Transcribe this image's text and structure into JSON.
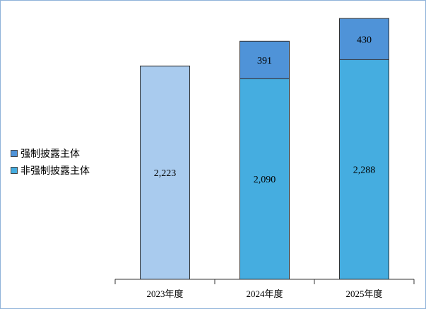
{
  "chart_data": {
    "type": "bar",
    "stacked": true,
    "categories": [
      "2023年度",
      "2024年度",
      "2025年度"
    ],
    "series": [
      {
        "name": "非强制披露主体",
        "values": [
          2223,
          2090,
          2288
        ],
        "labels": [
          "2,223",
          "2,090",
          "2,288"
        ],
        "color": "#45ade0"
      },
      {
        "name": "强制披露主体",
        "values": [
          0,
          391,
          430
        ],
        "labels": [
          "",
          "391",
          "430"
        ],
        "color": "#4f93d8"
      }
    ],
    "first_bar_color": "#a9cbee",
    "ylim": [
      0,
      2800
    ],
    "legend_position": "left",
    "grid": false,
    "title": "",
    "xlabel": "",
    "ylabel": ""
  }
}
